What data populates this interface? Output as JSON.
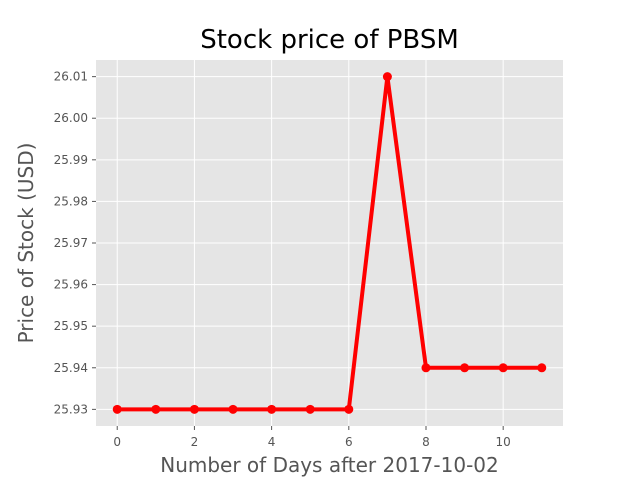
{
  "chart_data": {
    "type": "line",
    "title": "Stock price of PBSM",
    "xlabel": "Number of Days after 2017-10-02",
    "ylabel": "Price of Stock (USD)",
    "x": [
      0,
      1,
      2,
      3,
      4,
      5,
      6,
      7,
      8,
      9,
      10,
      11
    ],
    "series": [
      {
        "values": [
          25.93,
          25.93,
          25.93,
          25.93,
          25.93,
          25.93,
          25.93,
          26.01,
          25.94,
          25.94,
          25.94,
          25.94
        ],
        "color": "#ff0000"
      }
    ],
    "xlim": [
      -0.55,
      11.55
    ],
    "ylim": [
      25.926,
      26.014
    ],
    "xticks": [
      0,
      2,
      4,
      6,
      8,
      10
    ],
    "yticks": [
      25.93,
      25.94,
      25.95,
      25.96,
      25.97,
      25.98,
      25.99,
      26.0,
      26.01
    ],
    "ytick_labels": [
      "25.93",
      "25.94",
      "25.95",
      "25.96",
      "25.97",
      "25.98",
      "25.99",
      "26.00",
      "26.01"
    ],
    "xtick_labels": [
      "0",
      "2",
      "4",
      "6",
      "8",
      "10"
    ],
    "grid": true,
    "style": "ggplot",
    "background_color": "#e5e5e5",
    "grid_color": "#ffffff",
    "marker": "circle"
  }
}
